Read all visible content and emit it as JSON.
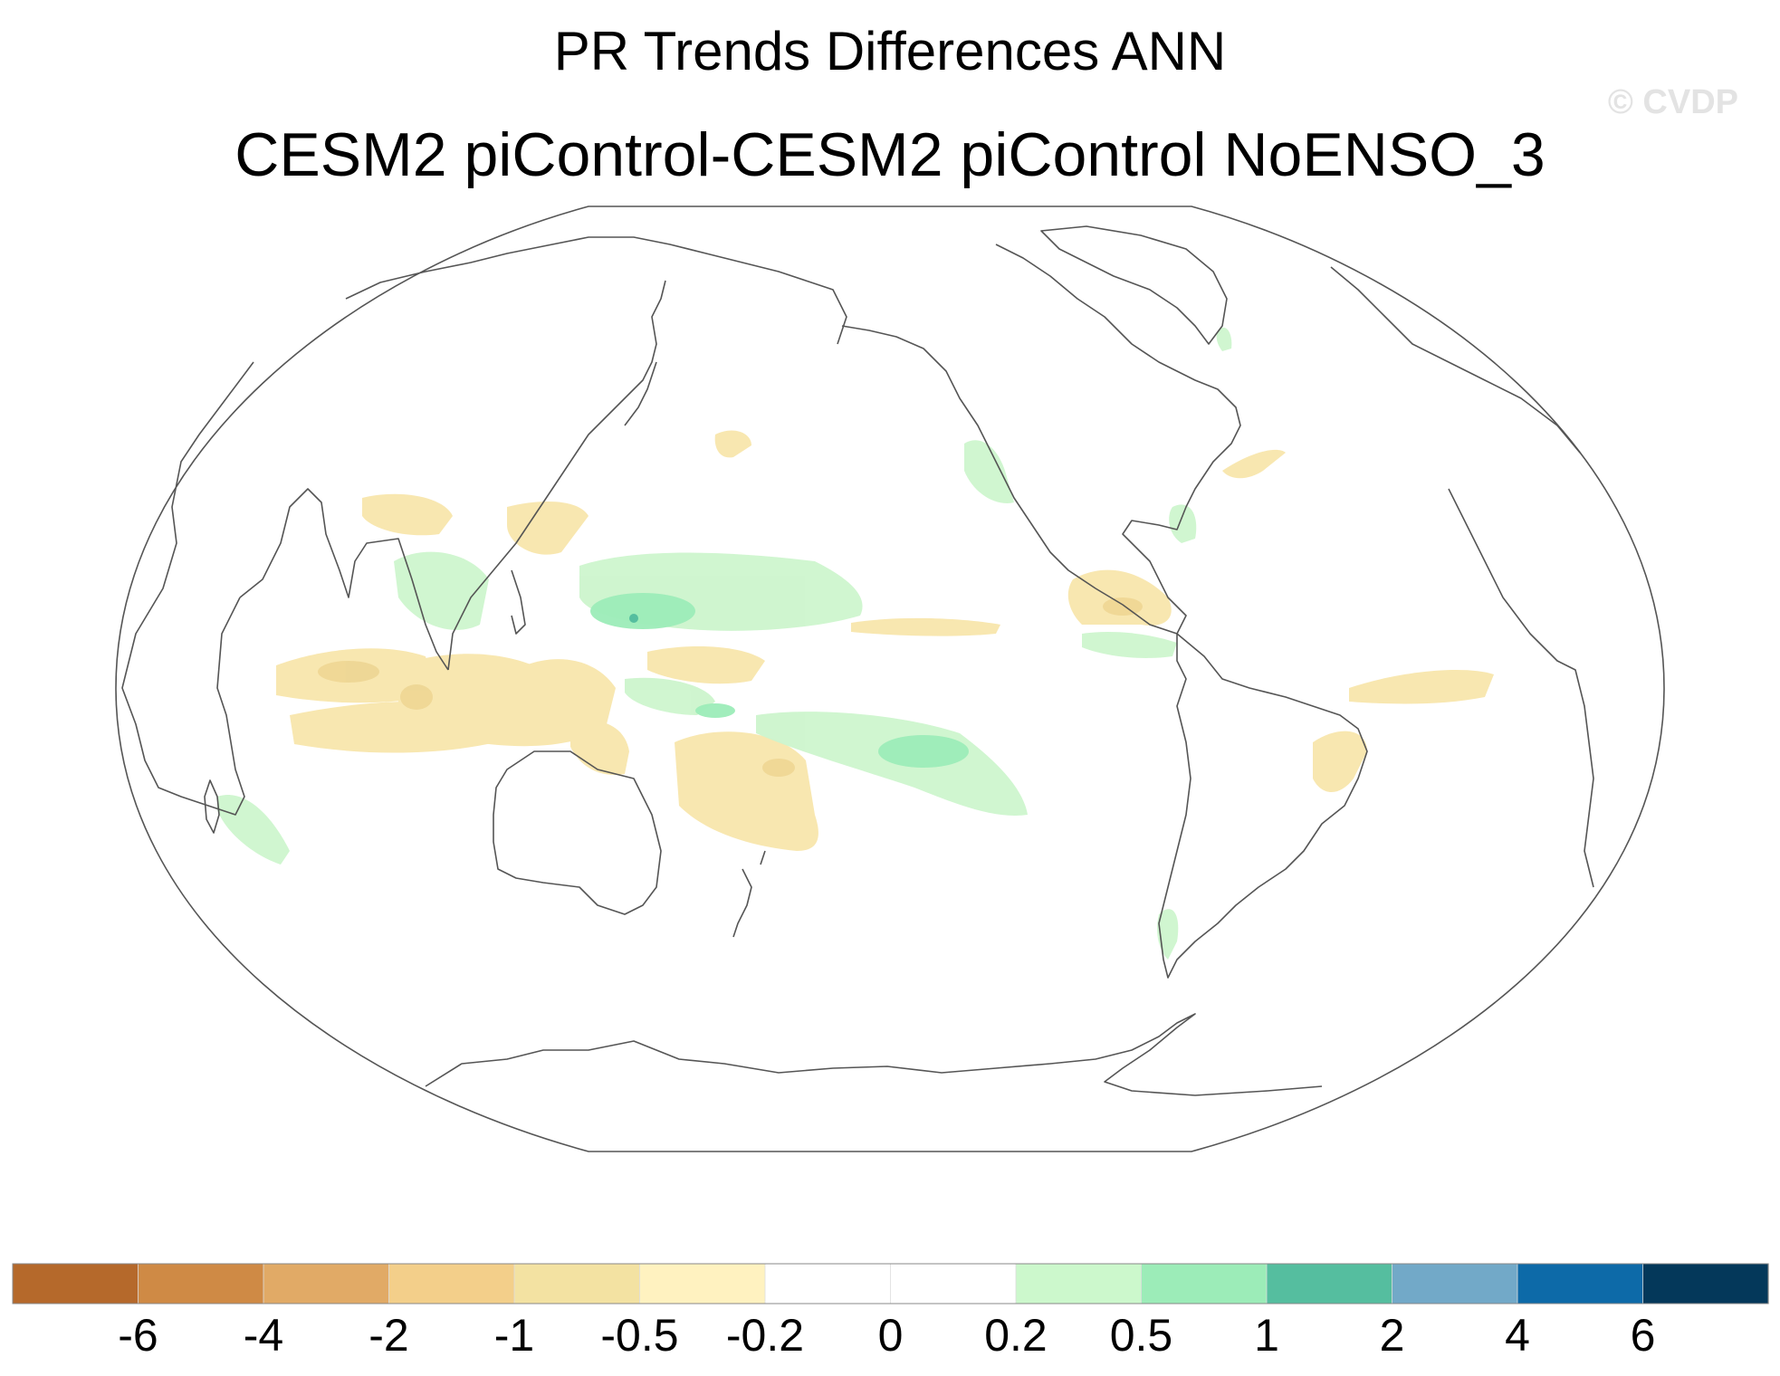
{
  "title": "PR Trends Differences ANN",
  "subtitle": "CESM2 piControl-CESM2 piControl NoENSO_3",
  "watermark": "© CVDP",
  "colorbar": {
    "colors": [
      "#b5692b",
      "#cf8a45",
      "#e1aa66",
      "#f3cf8a",
      "#f3e2a2",
      "#fff2c0",
      "#ffffff",
      "#ffffff",
      "#ccf8cc",
      "#9cecb8",
      "#55be9f",
      "#72a9c8",
      "#0d6aa8",
      "#04385a"
    ],
    "tick_labels": [
      "-6",
      "-4",
      "-2",
      "-1",
      "-0.5",
      "-0.2",
      "0",
      "0.2",
      "0.5",
      "1",
      "2",
      "4",
      "6"
    ]
  },
  "map": {
    "projection": "robinson",
    "central_longitude": 180,
    "variable": "PR",
    "features": [
      "coastlines",
      "precipitation-trend-difference-shading"
    ]
  }
}
